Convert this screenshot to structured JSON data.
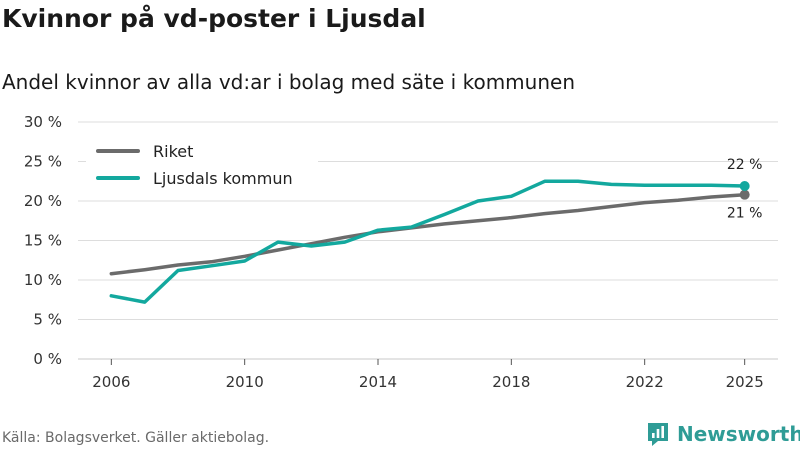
{
  "header": {
    "title": "Kvinnor på vd-poster i Ljusdal",
    "subtitle": "Andel kvinnor av alla vd:ar i bolag med säte i kommunen"
  },
  "footer": {
    "source": "Källa: Bolagsverket. Gäller aktiebolag.",
    "brand": "Newsworthy"
  },
  "colors": {
    "riket": "#6b6b6b",
    "ljusdal": "#13a89e",
    "grid": "#dddddd",
    "brand": "#2f9c96"
  },
  "chart_data": {
    "type": "line",
    "title": "Kvinnor på vd-poster i Ljusdal",
    "subtitle": "Andel kvinnor av alla vd:ar i bolag med säte i kommunen",
    "xlabel": "",
    "ylabel": "",
    "x": [
      2006,
      2007,
      2008,
      2009,
      2010,
      2011,
      2012,
      2013,
      2014,
      2015,
      2016,
      2017,
      2018,
      2019,
      2020,
      2021,
      2022,
      2023,
      2024,
      2025
    ],
    "xticks": [
      2006,
      2010,
      2014,
      2018,
      2022,
      2025
    ],
    "xtick_labels": [
      "2006",
      "2010",
      "2014",
      "2018",
      "2022",
      "2025"
    ],
    "xlim": [
      2005,
      2026
    ],
    "ylim": [
      0,
      30
    ],
    "yticks": [
      0,
      5,
      10,
      15,
      20,
      25,
      30
    ],
    "ytick_labels": [
      "0 %",
      "5 %",
      "10 %",
      "15 %",
      "20 %",
      "25 %",
      "30 %"
    ],
    "grid": true,
    "legend_position": "top-left",
    "series": [
      {
        "name": "Riket",
        "color": "#6b6b6b",
        "values": [
          10.8,
          11.3,
          11.9,
          12.3,
          13.0,
          13.8,
          14.6,
          15.4,
          16.1,
          16.6,
          17.1,
          17.5,
          17.9,
          18.4,
          18.8,
          19.3,
          19.8,
          20.1,
          20.5,
          20.8
        ],
        "end_label": "21 %"
      },
      {
        "name": "Ljusdals kommun",
        "color": "#13a89e",
        "values": [
          8.0,
          7.2,
          11.2,
          11.8,
          12.4,
          14.8,
          14.3,
          14.8,
          16.3,
          16.7,
          18.3,
          20.0,
          20.6,
          22.5,
          22.5,
          22.1,
          22.0,
          22.0,
          22.0,
          21.9
        ],
        "end_label": "22 %"
      }
    ]
  }
}
